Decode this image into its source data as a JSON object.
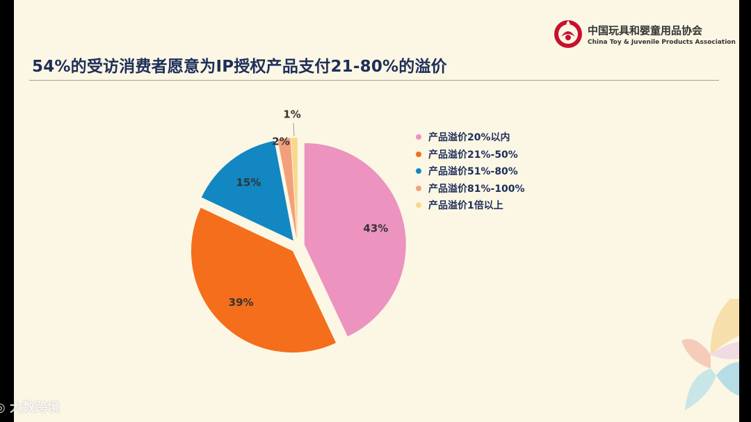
{
  "slide": {
    "title": "54%的受访消费者愿意为IP授权产品支付21-80%的溢价"
  },
  "logo": {
    "name_cn": "中国玩具和婴童用品协会",
    "name_en": "China Toy & Juvenile Products Association",
    "brand_color": "#C8102E"
  },
  "chart_data": {
    "type": "pie",
    "categories": [
      "产品溢价20%以内",
      "产品溢价21%-50%",
      "产品溢价51%-80%",
      "产品溢价81%-100%",
      "产品溢价1倍以上"
    ],
    "values": [
      43,
      39,
      15,
      2,
      1
    ],
    "labels": [
      "43%",
      "39%",
      "15%",
      "2%",
      "1%"
    ],
    "colors": [
      "#EC93BF",
      "#F46E1C",
      "#1287C2",
      "#F2A07C",
      "#F9D78C"
    ],
    "legend_position": "right"
  },
  "watermark": {
    "text": "大数跨境"
  }
}
